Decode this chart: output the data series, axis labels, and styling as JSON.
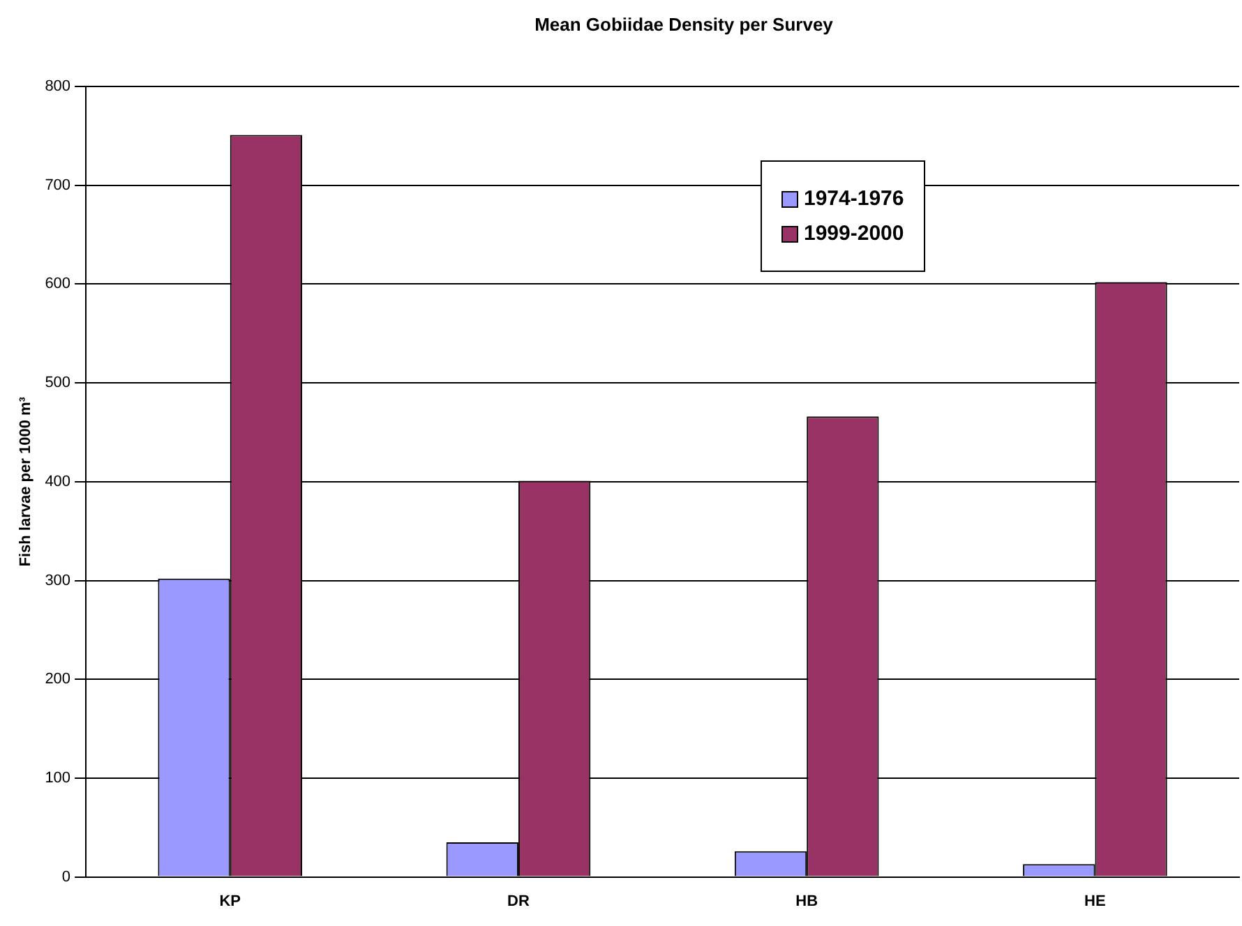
{
  "chart_data": {
    "type": "bar",
    "title": "Mean Gobiidae Density per Survey",
    "ylabel": "Fish larvae per 1000 m³",
    "categories": [
      "KP",
      "DR",
      "HB",
      "HE"
    ],
    "series": [
      {
        "name": "1974-1976",
        "color": "#9999ff",
        "values": [
          302,
          35,
          26,
          13
        ]
      },
      {
        "name": "1999-2000",
        "color": "#993366",
        "values": [
          751,
          401,
          466,
          602
        ]
      }
    ],
    "ylim": [
      0,
      800
    ],
    "yticks": [
      0,
      100,
      200,
      300,
      400,
      500,
      600,
      700,
      800
    ],
    "grid": "y",
    "legend": "top right"
  }
}
